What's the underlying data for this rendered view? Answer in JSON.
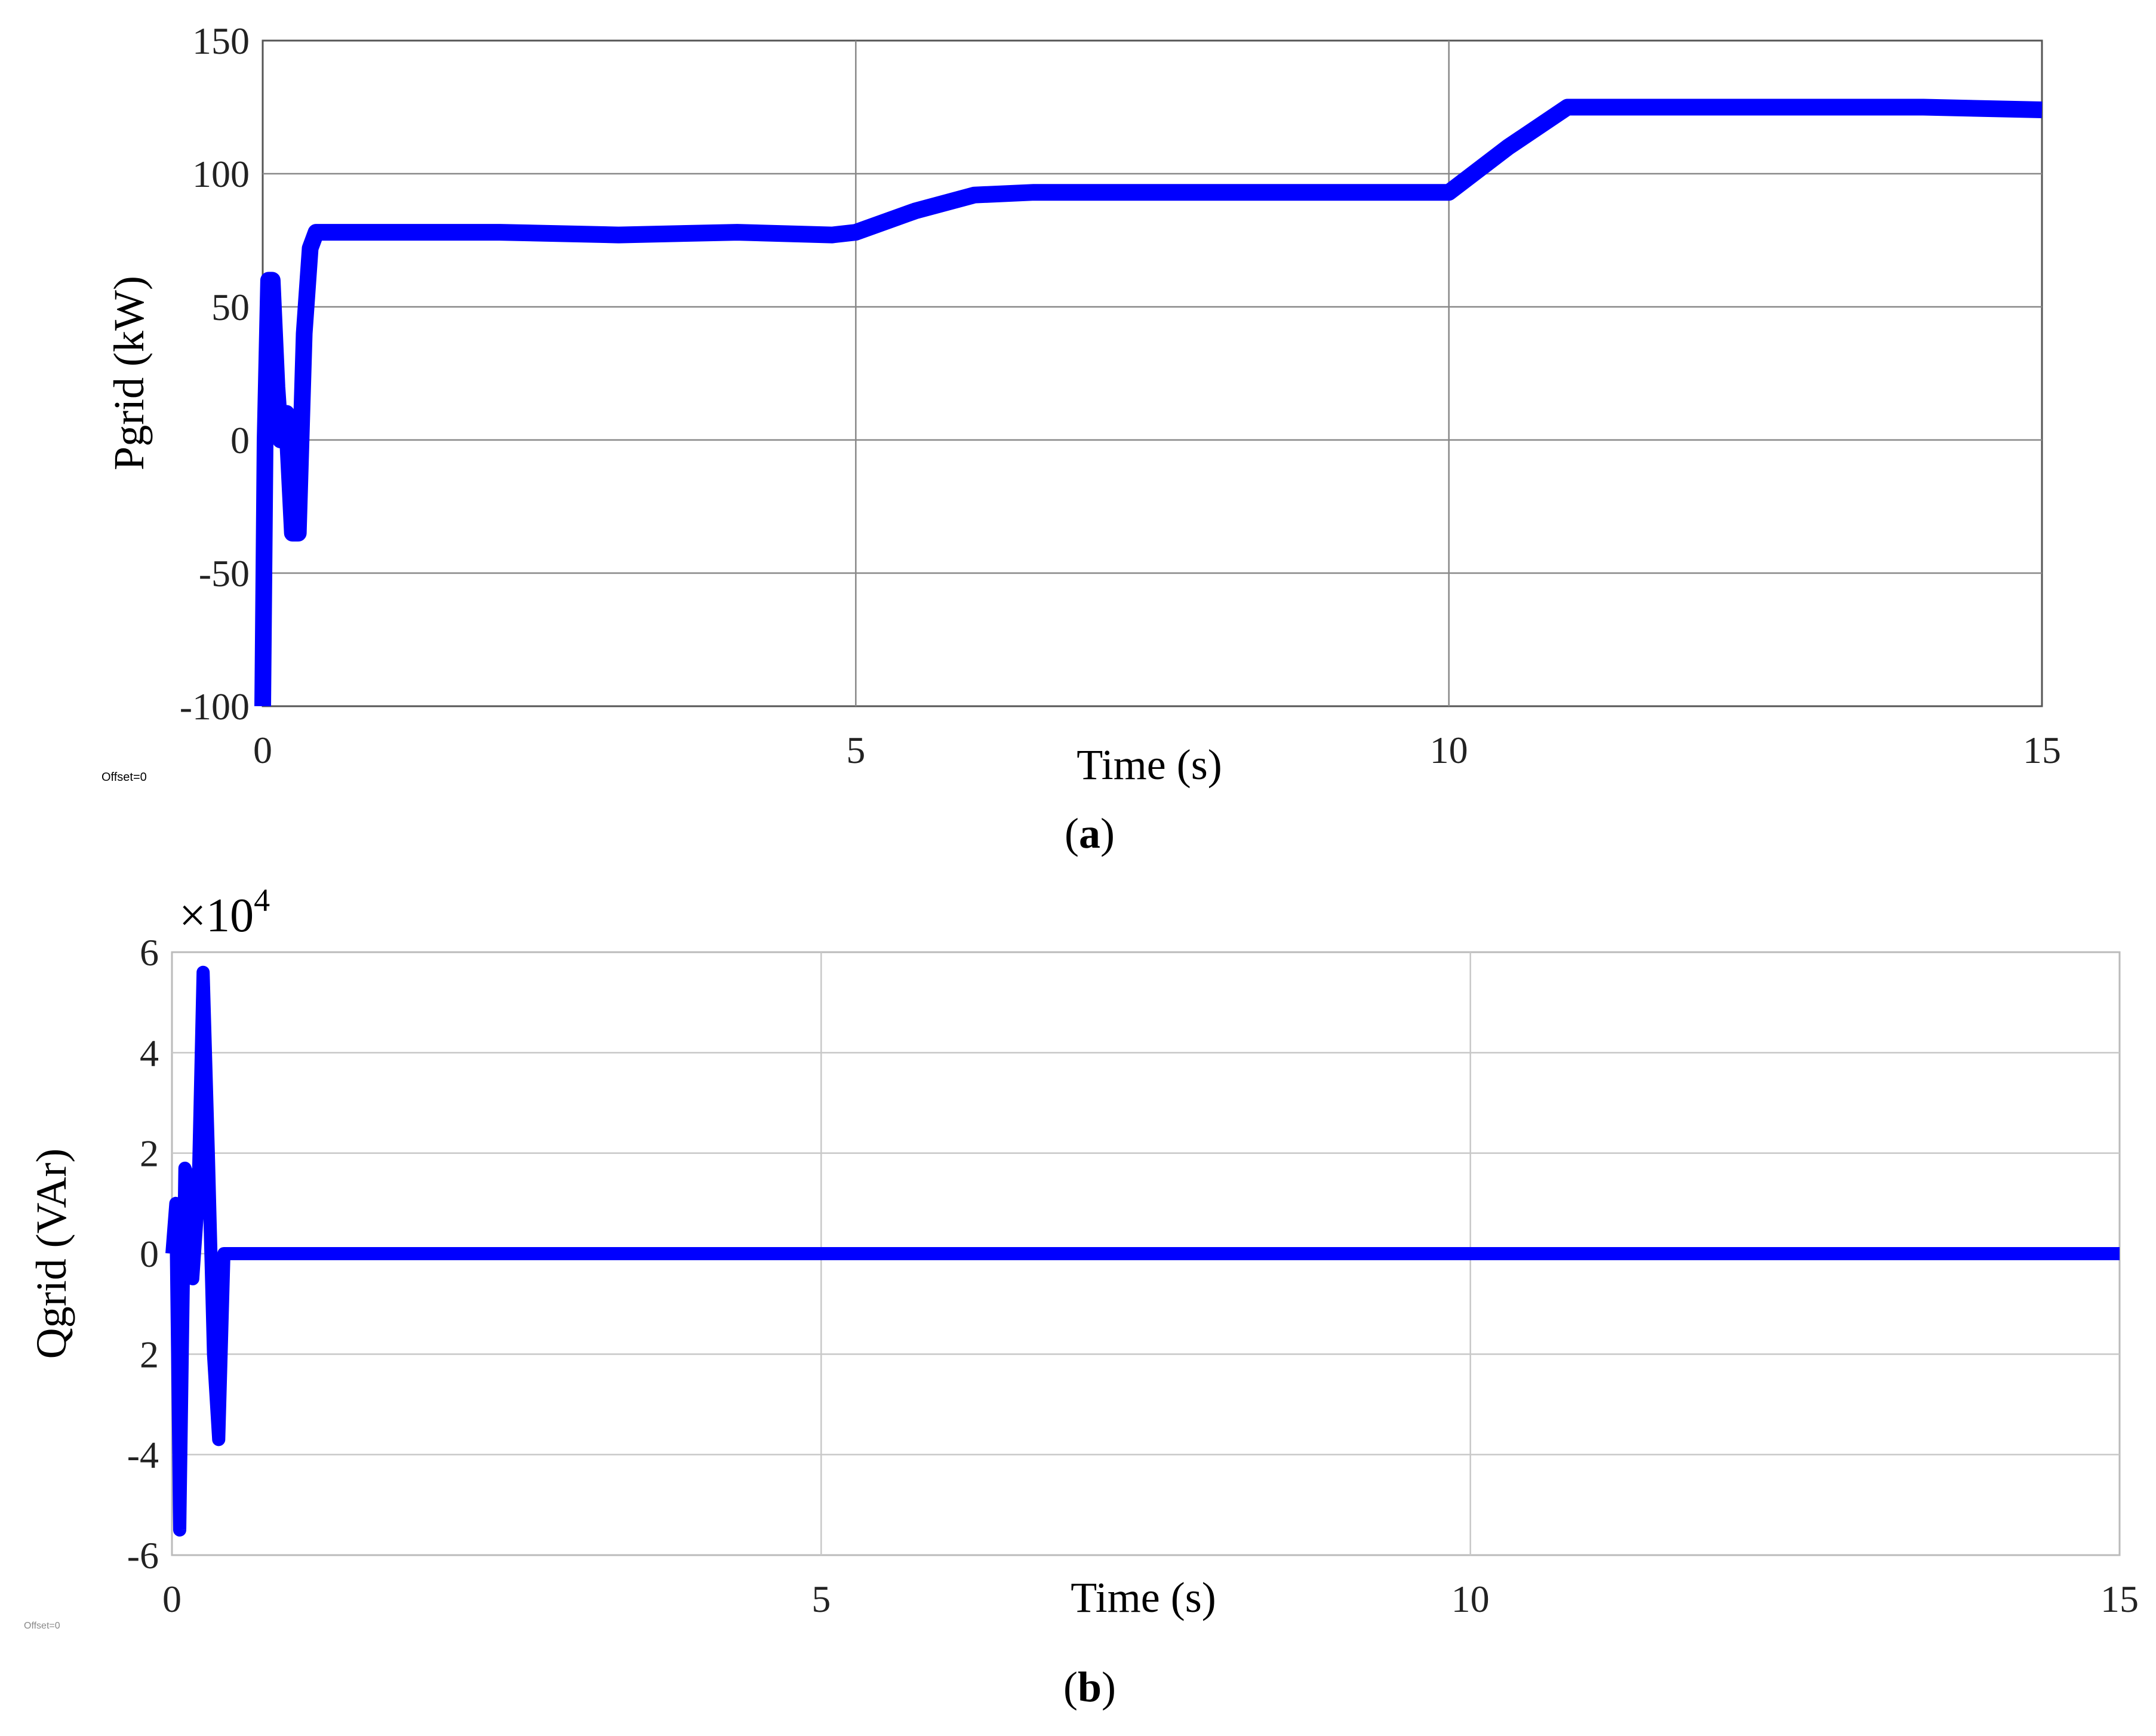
{
  "chart_data": [
    {
      "type": "line",
      "panel_label": "a",
      "ylabel": "Pgrid (kW)",
      "xlabel": "Time (s)",
      "offset_note": "Offset=0",
      "y_multiplier": "",
      "xlim": [
        0,
        15
      ],
      "ylim": [
        -100,
        150
      ],
      "x_ticks": [
        "0",
        "5",
        "10",
        "15"
      ],
      "y_ticks": [
        "150",
        "100",
        "50",
        "0",
        "-50",
        "-100"
      ],
      "grid": true,
      "color": "#0000ff",
      "series": [
        {
          "x": [
            0,
            0.02,
            0.05,
            0.08,
            0.12,
            0.15,
            0.2,
            0.25,
            0.3,
            0.35,
            0.4,
            0.45,
            0.5,
            1,
            2,
            3,
            4,
            4.8,
            5,
            5.5,
            6,
            6.5,
            7,
            8,
            9,
            9.8,
            10,
            10.5,
            11,
            11.5,
            12,
            13,
            14,
            15
          ],
          "y": [
            -100,
            0,
            60,
            60,
            20,
            0,
            10,
            -35,
            -35,
            40,
            72,
            78,
            78,
            78,
            78,
            77,
            78,
            77,
            78,
            86,
            92,
            93,
            93,
            93,
            93,
            93,
            93,
            110,
            125,
            125,
            125,
            125,
            125,
            124
          ]
        }
      ]
    },
    {
      "type": "line",
      "panel_label": "b",
      "ylabel": "Qgrid (VAr)",
      "xlabel": "Time (s)",
      "offset_note": "Offset=0",
      "y_multiplier": "×10",
      "y_multiplier_exp": "4",
      "xlim": [
        0,
        15
      ],
      "ylim": [
        -6,
        6
      ],
      "x_ticks": [
        "0",
        "5",
        "10",
        "15"
      ],
      "y_ticks": [
        "6",
        "4",
        "2",
        "0",
        "2",
        "-4",
        "-6"
      ],
      "grid": true,
      "color": "#0000ff",
      "series": [
        {
          "x": [
            0,
            0.03,
            0.06,
            0.1,
            0.13,
            0.16,
            0.2,
            0.24,
            0.28,
            0.32,
            0.36,
            0.4,
            0.5,
            1,
            2,
            3,
            4,
            5,
            6,
            7,
            8,
            9,
            10,
            11,
            12,
            13,
            14,
            15
          ],
          "y": [
            0,
            1,
            -5.5,
            1.7,
            1.5,
            -0.5,
            1,
            5.6,
            2,
            -2,
            -3.7,
            0,
            0,
            0,
            0,
            0,
            0,
            0,
            0,
            0,
            0,
            0,
            0,
            0,
            0,
            0,
            0,
            0
          ]
        }
      ]
    }
  ]
}
